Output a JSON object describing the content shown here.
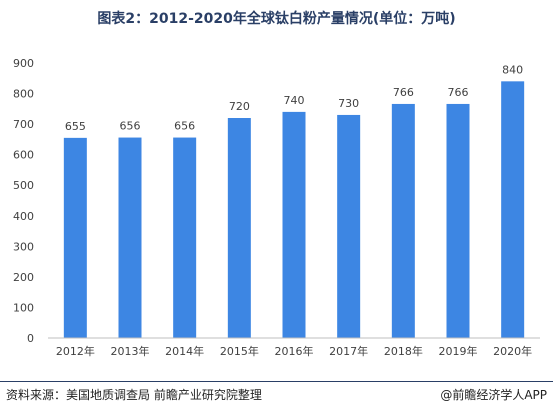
{
  "title": "图表2：2012-2020年全球钛白粉产量情况(单位：万吨)",
  "footer": {
    "source": "资料来源：美国地质调查局 前瞻产业研究院整理",
    "credit": "@前瞻经济学人APP"
  },
  "colors": {
    "bar": "#3d86e3",
    "axis": "#bfbfbf",
    "text": "#404040",
    "title": "#2a3f66"
  },
  "chart_data": {
    "type": "bar",
    "title": "图表2：2012-2020年全球钛白粉产量情况(单位：万吨)",
    "xlabel": "",
    "ylabel": "",
    "categories": [
      "2012年",
      "2013年",
      "2014年",
      "2015年",
      "2016年",
      "2017年",
      "2018年",
      "2019年",
      "2020年"
    ],
    "values": [
      655,
      656,
      656,
      720,
      740,
      730,
      766,
      766,
      840
    ],
    "ylim": [
      0,
      900
    ],
    "yticks": [
      0,
      100,
      200,
      300,
      400,
      500,
      600,
      700,
      800,
      900
    ],
    "data_labels": true,
    "grid": false,
    "legend": "none"
  }
}
